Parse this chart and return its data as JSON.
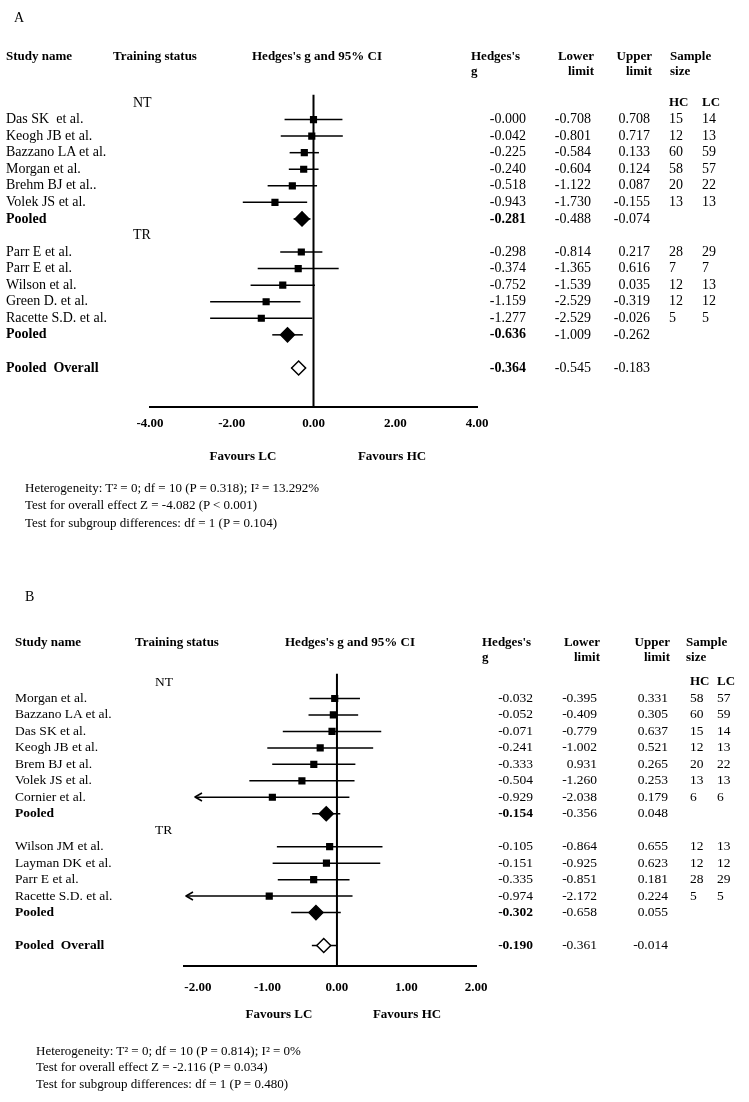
{
  "chart_data": [
    {
      "type": "scatter",
      "orientation": "horizontal",
      "title": "A",
      "categories": [
        "NT",
        "Das SK  et al.",
        "Keogh JB et al.",
        "Bazzano LA et al.",
        "Morgan et al.",
        "Brehm BJ et al..",
        "Volek JS et al.",
        "Pooled",
        "TR",
        "Parr E et al.",
        "Parr E et al.",
        "Wilson et al.",
        "Green D. et al.",
        "Racette S.D. et al.",
        "Pooled",
        null,
        "Pooled  Overall"
      ],
      "series": [
        {
          "color": "#000000",
          "marker": "square",
          "values": [
            null,
            0,
            -0.042,
            -0.225,
            -0.24,
            -0.518,
            -0.943,
            null,
            null,
            -0.298,
            -0.374,
            -0.752,
            -1.159,
            -1.277,
            null,
            null,
            null
          ],
          "errors": [
            null,
            [
              -0.708,
              0.708
            ],
            [
              -0.801,
              0.717
            ],
            [
              -0.584,
              0.133
            ],
            [
              -0.604,
              0.124
            ],
            [
              -1.122,
              0.087
            ],
            [
              -1.73,
              -0.155
            ],
            null,
            null,
            [
              -0.814,
              0.217
            ],
            [
              -1.365,
              0.616
            ],
            [
              -1.539,
              0.035
            ],
            [
              -2.529,
              -0.319
            ],
            [
              -2.529,
              -0.026
            ],
            null,
            null,
            null
          ],
          "value_labels": [
            null,
            "-0.000",
            "-0.042",
            "-0.225",
            "-0.240",
            "-0.518",
            "-0.943",
            null,
            null,
            "-0.298",
            "-0.374",
            "-0.752",
            "-1.159",
            "-1.277",
            null,
            null,
            null
          ]
        },
        {
          "color": "#000000",
          "marker": "diamond",
          "values": [
            null,
            null,
            null,
            null,
            null,
            null,
            null,
            -0.281,
            null,
            null,
            null,
            null,
            null,
            null,
            -0.636,
            null,
            null
          ],
          "errors": [
            null,
            null,
            null,
            null,
            null,
            null,
            null,
            [
              -0.488,
              -0.074
            ],
            null,
            null,
            null,
            null,
            null,
            null,
            [
              -1.009,
              -0.262
            ],
            null,
            null
          ]
        },
        {
          "color": "#ffffff",
          "marker": "diamond",
          "values": [
            null,
            null,
            null,
            null,
            null,
            null,
            null,
            null,
            null,
            null,
            null,
            null,
            null,
            null,
            null,
            null,
            -0.364
          ],
          "errors": [
            null,
            null,
            null,
            null,
            null,
            null,
            null,
            null,
            null,
            null,
            null,
            null,
            null,
            null,
            null,
            null,
            [
              -0.545,
              -0.183
            ]
          ]
        }
      ],
      "xlim": [
        -4,
        4
      ],
      "xticks": [
        {
          "value": -4,
          "label": "-4.00"
        },
        {
          "value": -2,
          "label": "-2.00"
        },
        {
          "value": 0,
          "label": "0.00"
        },
        {
          "value": 2,
          "label": "2.00"
        },
        {
          "value": 4,
          "label": "4.00"
        }
      ],
      "ref_lines": [
        {
          "axis": "x",
          "value": 0
        }
      ],
      "annotations": [
        "Study name",
        "Training status",
        "Hedges's g and 95% CI",
        "Hedges's g",
        "Lower limit",
        "Upper limit",
        "Sample size",
        "HC",
        "LC",
        "Favours LC",
        "Favours HC",
        "Heterogeneity: T² = 0; df = 10 (P = 0.318); I² = 13.292%",
        "Test for overall effect Z = -4.082 (P < 0.001)",
        "Test for subgroup differences: df = 1 (P = 0.104)",
        "-0.708",
        "0.708",
        "15",
        "14",
        "-0.801",
        "0.717",
        "12",
        "13",
        "-0.584",
        "0.133",
        "60",
        "59",
        "-0.604",
        "0.124",
        "58",
        "57",
        "-1.122",
        "0.087",
        "20",
        "22",
        "-1.730",
        "-0.155",
        "13",
        "13",
        "-0.281",
        "-0.488",
        "-0.074",
        "-0.814",
        "0.217",
        "28",
        "29",
        "-1.365",
        "0.616",
        "7",
        "7",
        "-1.539",
        "0.035",
        "12",
        "13",
        "-2.529",
        "-0.319",
        "12",
        "12",
        "-2.529",
        "-0.026",
        "5",
        "5",
        "-0.636",
        "-1.009",
        "-0.262",
        "-0.364",
        "-0.545",
        "-0.183"
      ]
    },
    {
      "type": "scatter",
      "orientation": "horizontal",
      "title": "B",
      "categories": [
        "NT",
        "Morgan et al.",
        "Bazzano LA et al.",
        "Das SK et al.",
        "Keogh JB et al.",
        "Brem BJ et al.",
        "Volek JS et al.",
        "Cornier et al.",
        "Pooled",
        "TR",
        "Wilson JM et al.",
        "Layman DK et al.",
        "Parr E et al.",
        "Racette S.D. et al.",
        "Pooled",
        null,
        "Pooled  Overall"
      ],
      "series": [
        {
          "color": "#000000",
          "marker": "square",
          "values": [
            null,
            -0.032,
            -0.052,
            -0.071,
            -0.241,
            -0.333,
            -0.504,
            -0.929,
            null,
            null,
            -0.105,
            -0.151,
            -0.335,
            -0.974,
            null,
            null,
            null
          ],
          "errors": [
            null,
            [
              -0.395,
              0.331
            ],
            [
              -0.409,
              0.305
            ],
            [
              -0.779,
              0.637
            ],
            [
              -1.002,
              0.521
            ],
            [
              -0.931,
              0.265
            ],
            [
              -1.26,
              0.253
            ],
            [
              -2.038,
              0.179
            ],
            null,
            null,
            [
              -0.864,
              0.655
            ],
            [
              -0.925,
              0.623
            ],
            [
              -0.851,
              0.181
            ],
            [
              -2.172,
              0.224
            ],
            null,
            null,
            null
          ],
          "value_labels": [
            null,
            "-0.032",
            "-0.052",
            "-0.071",
            "-0.241",
            "-0.333",
            "-0.504",
            "-0.929",
            null,
            null,
            "-0.105",
            "-0.151",
            "-0.335",
            "-0.974",
            null,
            null,
            null
          ]
        },
        {
          "color": "#000000",
          "marker": "diamond",
          "values": [
            null,
            null,
            null,
            null,
            null,
            null,
            null,
            null,
            -0.154,
            null,
            null,
            null,
            null,
            null,
            -0.302,
            null,
            null
          ],
          "errors": [
            null,
            null,
            null,
            null,
            null,
            null,
            null,
            null,
            [
              -0.356,
              0.048
            ],
            null,
            null,
            null,
            null,
            null,
            [
              -0.658,
              0.055
            ],
            null,
            null
          ]
        },
        {
          "color": "#ffffff",
          "marker": "diamond",
          "values": [
            null,
            null,
            null,
            null,
            null,
            null,
            null,
            null,
            null,
            null,
            null,
            null,
            null,
            null,
            null,
            null,
            -0.19
          ],
          "errors": [
            null,
            null,
            null,
            null,
            null,
            null,
            null,
            null,
            null,
            null,
            null,
            null,
            null,
            null,
            null,
            null,
            [
              -0.361,
              -0.014
            ]
          ]
        }
      ],
      "xlim": [
        -2.2,
        2
      ],
      "xticks": [
        {
          "value": -2,
          "label": "-2.00"
        },
        {
          "value": -1,
          "label": "-1.00"
        },
        {
          "value": 0,
          "label": "0.00"
        },
        {
          "value": 1,
          "label": "1.00"
        },
        {
          "value": 2,
          "label": "2.00"
        }
      ],
      "ref_lines": [
        {
          "axis": "x",
          "value": 0
        }
      ],
      "annotations": [
        "Study name",
        "Training status",
        "Hedges's g and 95% CI",
        "Hedges's g",
        "Lower limit",
        "Upper limit",
        "Sample size",
        "HC",
        "LC",
        "Favours LC",
        "Favours HC",
        "Heterogeneity: T² = 0; df = 10 (P = 0.814); I² = 0%",
        "Test for overall effect Z = -2.116 (P = 0.034)",
        "Test for subgroup differences: df = 1 (P = 0.480)",
        "-0.395",
        "0.331",
        "58",
        "57",
        "-0.409",
        "0.305",
        "60",
        "59",
        "-0.779",
        "0.637",
        "15",
        "14",
        "-1.002",
        "0.521",
        "12",
        "13",
        "0.931",
        "0.265",
        "20",
        "22",
        "-1.260",
        "0.253",
        "13",
        "13",
        "-2.038",
        "0.179",
        "6",
        "6",
        "-0.154",
        "-0.356",
        "0.048",
        "-0.864",
        "0.655",
        "12",
        "13",
        "-0.925",
        "0.623",
        "12",
        "12",
        "-0.851",
        "0.181",
        "28",
        "29",
        "-2.172",
        "0.224",
        "5",
        "5",
        "-0.302",
        "-0.658",
        "0.055",
        "-0.190",
        "-0.361",
        "-0.014"
      ]
    }
  ]
}
